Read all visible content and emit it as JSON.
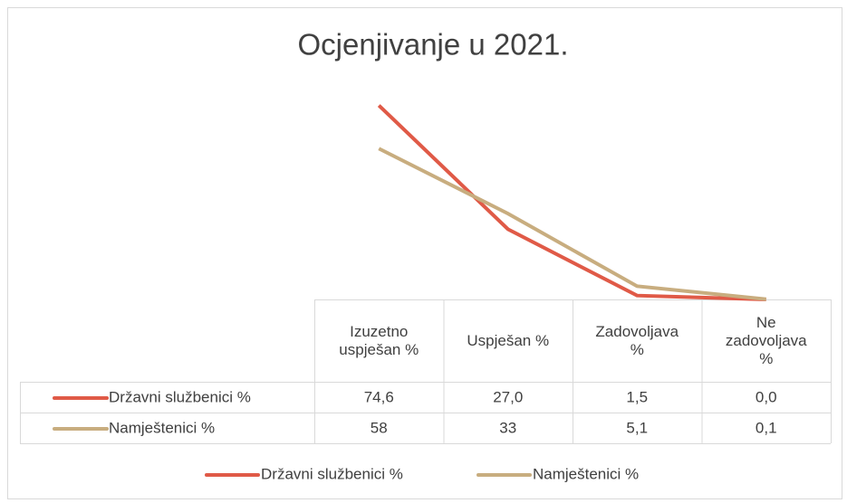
{
  "chart_data": {
    "type": "line",
    "title": "Ocjenjivanje u 2021.",
    "categories": [
      "Izuzetno uspješan %",
      "Uspješan %",
      "Zadovoljava %",
      "Ne zadovoljava %"
    ],
    "series": [
      {
        "name": "Državni službenici %",
        "color": "#e05a47",
        "values": [
          74.6,
          27.0,
          1.5,
          0.0
        ],
        "value_labels": [
          "74,6",
          "27,0",
          "1,5",
          "0,0"
        ]
      },
      {
        "name": "Namještenici %",
        "color": "#c8ad7f",
        "values": [
          58,
          33,
          5.1,
          0.1
        ],
        "value_labels": [
          "58",
          "33",
          "5,1",
          "0,1"
        ]
      }
    ],
    "ylim": [
      0,
      80
    ],
    "legend": "bottom"
  }
}
